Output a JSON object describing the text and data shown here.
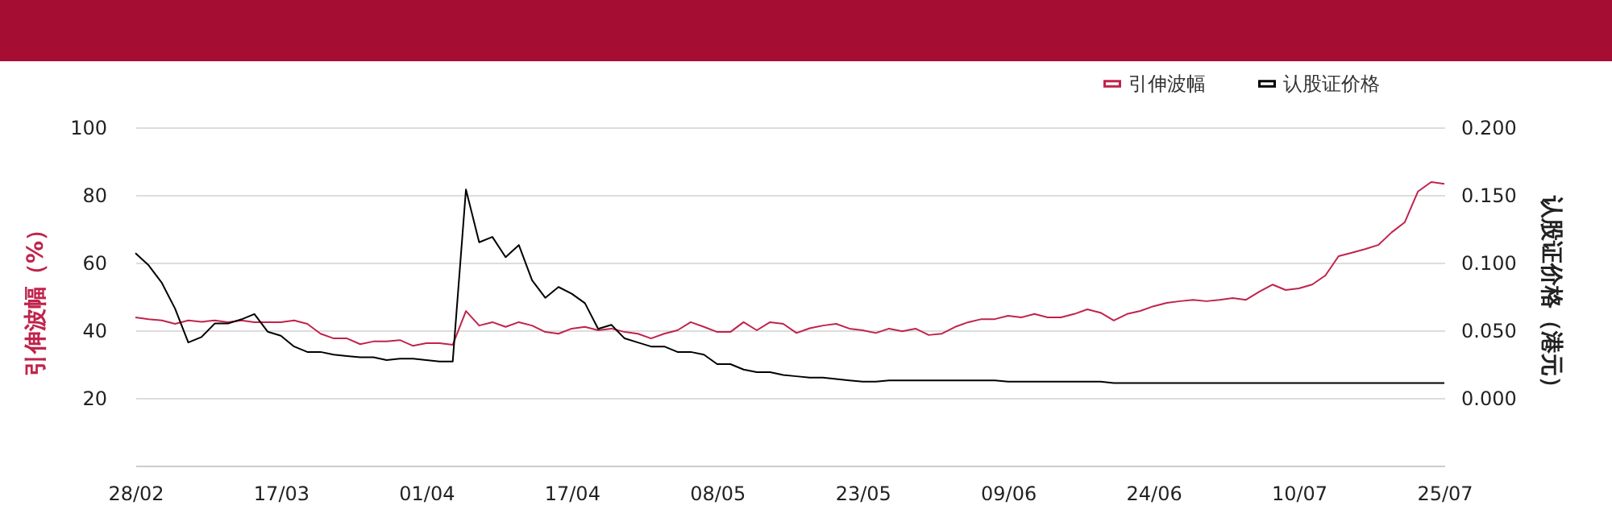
{
  "chart_data": {
    "type": "line",
    "ylabel": "引伸波幅（%）",
    "y2label": "认股证价格（港元）",
    "categories": [
      "28/02",
      null,
      null,
      null,
      null,
      null,
      null,
      null,
      null,
      null,
      null,
      "17/03",
      null,
      null,
      null,
      null,
      null,
      null,
      null,
      null,
      null,
      null,
      "01/04",
      null,
      null,
      null,
      null,
      null,
      null,
      null,
      null,
      null,
      null,
      "17/04",
      null,
      null,
      null,
      null,
      null,
      null,
      null,
      null,
      null,
      null,
      "08/05",
      null,
      null,
      null,
      null,
      null,
      null,
      null,
      null,
      null,
      null,
      "23/05",
      null,
      null,
      null,
      null,
      null,
      null,
      null,
      null,
      null,
      null,
      "09/06",
      null,
      null,
      null,
      null,
      null,
      null,
      null,
      null,
      null,
      null,
      "24/06",
      null,
      null,
      null,
      null,
      null,
      null,
      null,
      null,
      null,
      null,
      "10/07",
      null,
      null,
      null,
      null,
      null,
      null,
      null,
      null,
      null,
      null,
      "25/07"
    ],
    "series": [
      {
        "name": "引伸波幅",
        "color": "#c0234b",
        "values": [
          43.8,
          43.3,
          42.9,
          41.9,
          42.9,
          42.5,
          42.9,
          42.4,
          42.9,
          42.4,
          42.4,
          42.4,
          42.9,
          41.9,
          39,
          37.6,
          37.6,
          35.9,
          36.7,
          36.7,
          37.1,
          35.4,
          36.2,
          36.2,
          35.7,
          45.7,
          41.4,
          42.4,
          41,
          42.4,
          41.4,
          39.5,
          39,
          40.5,
          41,
          40,
          40.5,
          39.5,
          39,
          37.6,
          39,
          40,
          42.4,
          41,
          39.5,
          39.5,
          42.4,
          40,
          42.4,
          41.9,
          39.2,
          40.6,
          41.4,
          41.9,
          40.5,
          40,
          39.2,
          40.5,
          39.7,
          40.5,
          38.6,
          39,
          41,
          42.4,
          43.3,
          43.3,
          44.3,
          43.8,
          44.8,
          43.8,
          43.8,
          44.8,
          46.2,
          45.2,
          42.9,
          44.8,
          45.7,
          47.1,
          48.1,
          48.6,
          49,
          48.6,
          49,
          49.5,
          49,
          51.4,
          53.5,
          51.9,
          52.4,
          53.5,
          56.2,
          61.9,
          62.9,
          64,
          65.2,
          68.9,
          71.9,
          81,
          83.8,
          83.3
        ]
      },
      {
        "name": "认股证价格",
        "color": "#000000",
        "axis": "y2",
        "values": [
          0.107,
          0.098,
          0.085,
          0.066,
          0.041,
          0.045,
          0.055,
          0.055,
          0.058,
          0.062,
          0.049,
          0.046,
          0.038,
          0.034,
          0.034,
          0.032,
          0.031,
          0.03,
          0.03,
          0.028,
          0.029,
          0.029,
          0.028,
          0.027,
          0.027,
          0.154,
          0.115,
          0.119,
          0.104,
          0.113,
          0.087,
          0.074,
          0.082,
          0.077,
          0.07,
          0.051,
          0.054,
          0.044,
          0.041,
          0.038,
          0.038,
          0.034,
          0.034,
          0.032,
          0.025,
          0.025,
          0.021,
          0.019,
          0.019,
          0.017,
          0.016,
          0.015,
          0.015,
          0.014,
          0.013,
          0.012,
          0.012,
          0.013,
          0.013,
          0.013,
          0.013,
          0.013,
          0.013,
          0.013,
          0.013,
          0.013,
          0.012,
          0.012,
          0.012,
          0.012,
          0.012,
          0.012,
          0.012,
          0.012,
          0.011,
          0.011,
          0.011,
          0.011,
          0.011,
          0.011,
          0.011,
          0.011,
          0.011,
          0.011,
          0.011,
          0.011,
          0.011,
          0.011,
          0.011,
          0.011,
          0.011,
          0.011,
          0.011,
          0.011,
          0.011,
          0.011,
          0.011,
          0.011,
          0.011,
          0.011
        ]
      }
    ],
    "ylim": [
      0,
      100
    ],
    "yticks": [
      20,
      40,
      60,
      80,
      100
    ],
    "y2lim": [
      -0.05,
      0.2
    ],
    "y2ticks": [
      {
        "value": 0,
        "label": "0.000"
      },
      {
        "value": 0.05,
        "label": "0.050"
      },
      {
        "value": 0.1,
        "label": "0.100"
      },
      {
        "value": 0.15,
        "label": "0.150"
      },
      {
        "value": 0.2,
        "label": "0.200"
      }
    ],
    "grid": "y",
    "legend": "top right"
  }
}
